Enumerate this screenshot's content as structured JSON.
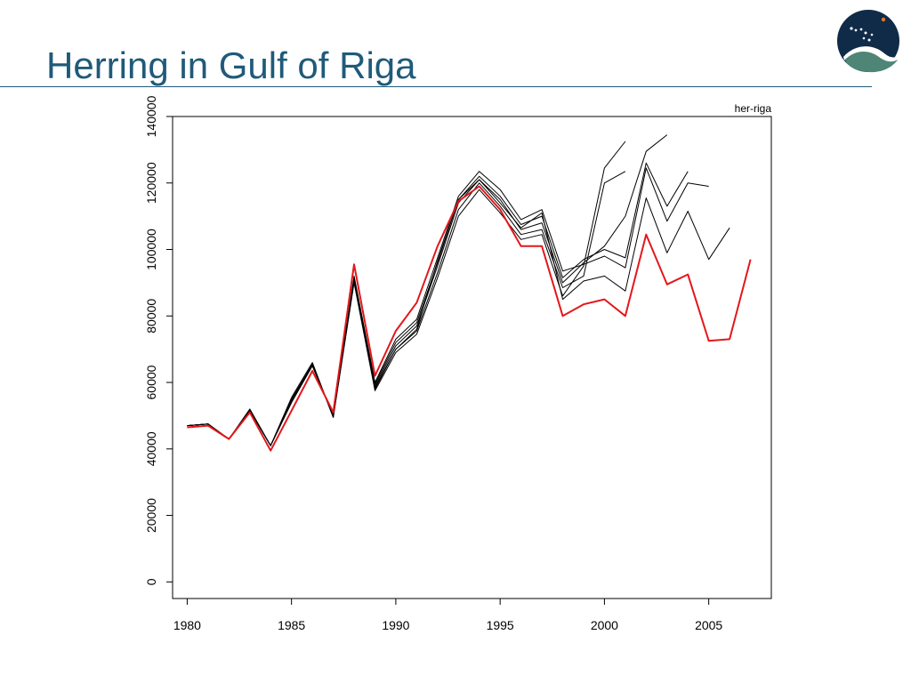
{
  "slide": {
    "title": "Herring in Gulf of Riga"
  },
  "colors": {
    "title": "#1f5a7a",
    "rule": "#1f5a7a",
    "accent_series": "#e3171b",
    "retro_series": "#000000",
    "logo_dark": "#0f2b48",
    "logo_teal": "#4e8577",
    "logo_dot": "#e8762b"
  },
  "logo": {
    "icon": "ices-logo-icon"
  },
  "chart_data": {
    "type": "line",
    "title": "",
    "corner_label": "her-riga",
    "xlabel": "",
    "ylabel": "",
    "xlim": [
      1979.3,
      2008.0
    ],
    "ylim": [
      -5000,
      140000
    ],
    "x_ticks": [
      1980,
      1985,
      1990,
      1995,
      2000,
      2005
    ],
    "y_ticks": [
      0,
      20000,
      40000,
      60000,
      80000,
      100000,
      120000,
      140000
    ],
    "grid": false,
    "legend": "none",
    "series": [
      {
        "style": "accent",
        "x": [
          1980,
          1981,
          1982,
          1983,
          1984,
          1985,
          1986,
          1987,
          1988,
          1989,
          1990,
          1991,
          1992,
          1993,
          1994,
          1995,
          1996,
          1997,
          1998,
          1999,
          2000,
          2001,
          2002,
          2003,
          2004,
          2005,
          2006,
          2007
        ],
        "values": [
          46500,
          47000,
          43000,
          51000,
          39500,
          51500,
          63500,
          51000,
          95500,
          62000,
          75500,
          84000,
          101000,
          114500,
          119000,
          112000,
          101000,
          101000,
          80000,
          83500,
          85000,
          80000,
          104500,
          89500,
          92500,
          72500,
          73000,
          97000
        ]
      },
      {
        "style": "retro",
        "x": [
          1980,
          1981,
          1982,
          1983,
          1984,
          1985,
          1986,
          1987,
          1988,
          1989,
          1990,
          1991,
          1992,
          1993,
          1994,
          1995,
          1996,
          1997,
          1998,
          1999,
          2000,
          2001
        ],
        "values": [
          47000,
          47500,
          43000,
          52000,
          41000,
          55500,
          66000,
          49500,
          90000,
          57500,
          69000,
          74500,
          91500,
          110000,
          118000,
          111000,
          103000,
          104500,
          86000,
          95000,
          124500,
          132500
        ]
      },
      {
        "style": "retro",
        "x": [
          1980,
          1981,
          1982,
          1983,
          1984,
          1985,
          1986,
          1987,
          1988,
          1989,
          1990,
          1991,
          1992,
          1993,
          1994,
          1995,
          1996,
          1997,
          1998,
          1999,
          2000,
          2001
        ],
        "values": [
          47000,
          47500,
          43000,
          51500,
          41000,
          54500,
          65000,
          50000,
          90500,
          58500,
          70000,
          75500,
          93000,
          112000,
          120000,
          113000,
          104500,
          106000,
          88500,
          92000,
          120000,
          123500
        ]
      },
      {
        "style": "retro",
        "x": [
          1980,
          1981,
          1982,
          1983,
          1984,
          1985,
          1986,
          1987,
          1988,
          1989,
          1990,
          1991,
          1992,
          1993,
          1994,
          1995,
          1996,
          1997,
          1998,
          1999,
          2000,
          2001,
          2002,
          2003
        ],
        "values": [
          47000,
          47500,
          43000,
          51500,
          41000,
          54000,
          65000,
          50000,
          91000,
          59000,
          71000,
          77000,
          95000,
          114000,
          121000,
          115000,
          106000,
          108000,
          90000,
          96000,
          101000,
          110000,
          129500,
          134500
        ]
      },
      {
        "style": "retro",
        "x": [
          1980,
          1981,
          1982,
          1983,
          1984,
          1985,
          1986,
          1987,
          1988,
          1989,
          1990,
          1991,
          1992,
          1993,
          1994,
          1995,
          1996,
          1997,
          1998,
          1999,
          2000,
          2001,
          2002,
          2003,
          2004
        ],
        "values": [
          47000,
          47500,
          43000,
          51500,
          41000,
          54000,
          65000,
          50000,
          91500,
          59500,
          72000,
          78000,
          96000,
          115000,
          122000,
          116000,
          107500,
          110000,
          91500,
          97000,
          100000,
          97500,
          126000,
          113000,
          123500
        ]
      },
      {
        "style": "retro",
        "x": [
          1980,
          1981,
          1982,
          1983,
          1984,
          1985,
          1986,
          1987,
          1988,
          1989,
          1990,
          1991,
          1992,
          1993,
          1994,
          1995,
          1996,
          1997,
          1998,
          1999,
          2000,
          2001,
          2002,
          2003,
          2004,
          2005
        ],
        "values": [
          47000,
          47500,
          43000,
          51500,
          41000,
          54500,
          65500,
          50000,
          92000,
          60000,
          73000,
          79000,
          97500,
          116000,
          123500,
          118000,
          109000,
          112000,
          93500,
          95500,
          98000,
          94500,
          124500,
          108500,
          120000,
          119000
        ]
      },
      {
        "style": "retro",
        "x": [
          1980,
          1981,
          1982,
          1983,
          1984,
          1985,
          1986,
          1987,
          1988,
          1989,
          1990,
          1991,
          1992,
          1993,
          1994,
          1995,
          1996,
          1997,
          1998,
          1999,
          2000,
          2001,
          2002,
          2003,
          2004,
          2005,
          2006
        ],
        "values": [
          47000,
          47500,
          43000,
          51500,
          41000,
          55000,
          65500,
          49500,
          91000,
          58000,
          70000,
          76000,
          96500,
          115000,
          121000,
          114000,
          106500,
          111000,
          85000,
          90500,
          92000,
          87500,
          115500,
          99000,
          111500,
          97000,
          106500
        ]
      }
    ]
  }
}
